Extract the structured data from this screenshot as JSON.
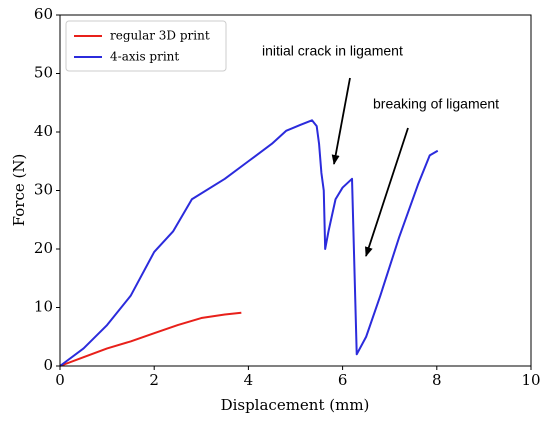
{
  "chart_data": {
    "type": "line",
    "x_label": "Displacement (mm)",
    "y_label": "Force (N)",
    "xlim": [
      0,
      10
    ],
    "ylim": [
      0,
      60
    ],
    "xticks": [
      0,
      2,
      4,
      6,
      8,
      10
    ],
    "yticks": [
      0,
      10,
      20,
      30,
      40,
      50,
      60
    ],
    "grid": false,
    "legend": "upper left",
    "annotations": [
      {
        "text": "initial crack in ligament"
      },
      {
        "text": "breaking of ligament"
      }
    ],
    "series": [
      {
        "name": "regular 3D print",
        "color": "#e8201a",
        "x": [
          0,
          0.5,
          1,
          1.5,
          2,
          2.5,
          3,
          3.5,
          3.85
        ],
        "values": [
          0,
          1.5,
          3,
          4.2,
          5.6,
          7,
          8.2,
          8.8,
          9.1
        ]
      },
      {
        "name": "4-axis print",
        "color": "#2b2bdc",
        "x": [
          0,
          0.5,
          1,
          1.5,
          2,
          2.4,
          2.8,
          3.5,
          4,
          4.5,
          4.8,
          5.1,
          5.35,
          5.45,
          5.5,
          5.55,
          5.6,
          5.63,
          5.7,
          5.85,
          6,
          6.2,
          6.3,
          6.5,
          6.8,
          7.2,
          7.6,
          7.85,
          8.02
        ],
        "values": [
          0,
          3,
          7,
          12,
          19.5,
          23,
          28.5,
          32,
          35,
          38,
          40.2,
          41.2,
          42,
          41,
          38,
          33,
          30,
          20,
          23,
          28.5,
          30.5,
          32,
          2,
          5,
          12,
          22,
          31,
          36,
          36.8
        ]
      }
    ]
  }
}
